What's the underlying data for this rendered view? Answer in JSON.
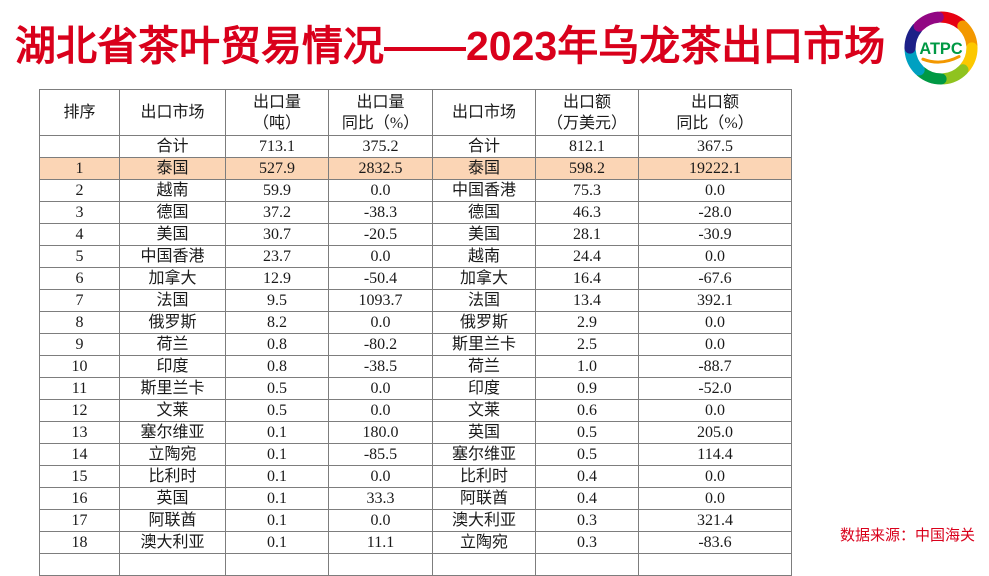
{
  "title": "湖北省茶叶贸易情况——2023年乌龙茶出口市场",
  "logo": {
    "text": "ATPC",
    "swirl_colors": [
      "#e60012",
      "#f39800",
      "#fcc800",
      "#8fc31f",
      "#009944",
      "#00a0c1",
      "#1d2088",
      "#920783"
    ],
    "text_color": "#009944",
    "swoosh_color": "#f39800"
  },
  "source_note": "数据来源：中国海关",
  "colors": {
    "title_red": "#d9001b",
    "highlight_peach": "#fbd5b5",
    "table_border": "#7d7d7d",
    "table_text": "#1a1a1a"
  },
  "table": {
    "headers": [
      "排序",
      "出口市场",
      "出口量\n（吨）",
      "出口量\n同比（%）",
      "出口市场",
      "出口额\n（万美元）",
      "出口额\n同比（%）"
    ],
    "highlight_rank": "1",
    "rows": [
      [
        "",
        "合计",
        "713.1",
        "375.2",
        "合计",
        "812.1",
        "367.5"
      ],
      [
        "1",
        "泰国",
        "527.9",
        "2832.5",
        "泰国",
        "598.2",
        "19222.1"
      ],
      [
        "2",
        "越南",
        "59.9",
        "0.0",
        "中国香港",
        "75.3",
        "0.0"
      ],
      [
        "3",
        "德国",
        "37.2",
        "-38.3",
        "德国",
        "46.3",
        "-28.0"
      ],
      [
        "4",
        "美国",
        "30.7",
        "-20.5",
        "美国",
        "28.1",
        "-30.9"
      ],
      [
        "5",
        "中国香港",
        "23.7",
        "0.0",
        "越南",
        "24.4",
        "0.0"
      ],
      [
        "6",
        "加拿大",
        "12.9",
        "-50.4",
        "加拿大",
        "16.4",
        "-67.6"
      ],
      [
        "7",
        "法国",
        "9.5",
        "1093.7",
        "法国",
        "13.4",
        "392.1"
      ],
      [
        "8",
        "俄罗斯",
        "8.2",
        "0.0",
        "俄罗斯",
        "2.9",
        "0.0"
      ],
      [
        "9",
        "荷兰",
        "0.8",
        "-80.2",
        "斯里兰卡",
        "2.5",
        "0.0"
      ],
      [
        "10",
        "印度",
        "0.8",
        "-38.5",
        "荷兰",
        "1.0",
        "-88.7"
      ],
      [
        "11",
        "斯里兰卡",
        "0.5",
        "0.0",
        "印度",
        "0.9",
        "-52.0"
      ],
      [
        "12",
        "文莱",
        "0.5",
        "0.0",
        "文莱",
        "0.6",
        "0.0"
      ],
      [
        "13",
        "塞尔维亚",
        "0.1",
        "180.0",
        "英国",
        "0.5",
        "205.0"
      ],
      [
        "14",
        "立陶宛",
        "0.1",
        "-85.5",
        "塞尔维亚",
        "0.5",
        "114.4"
      ],
      [
        "15",
        "比利时",
        "0.1",
        "0.0",
        "比利时",
        "0.4",
        "0.0"
      ],
      [
        "16",
        "英国",
        "0.1",
        "33.3",
        "阿联酋",
        "0.4",
        "0.0"
      ],
      [
        "17",
        "阿联酋",
        "0.1",
        "0.0",
        "澳大利亚",
        "0.3",
        "321.4"
      ],
      [
        "18",
        "澳大利亚",
        "0.1",
        "11.1",
        "立陶宛",
        "0.3",
        "-83.6"
      ]
    ]
  }
}
